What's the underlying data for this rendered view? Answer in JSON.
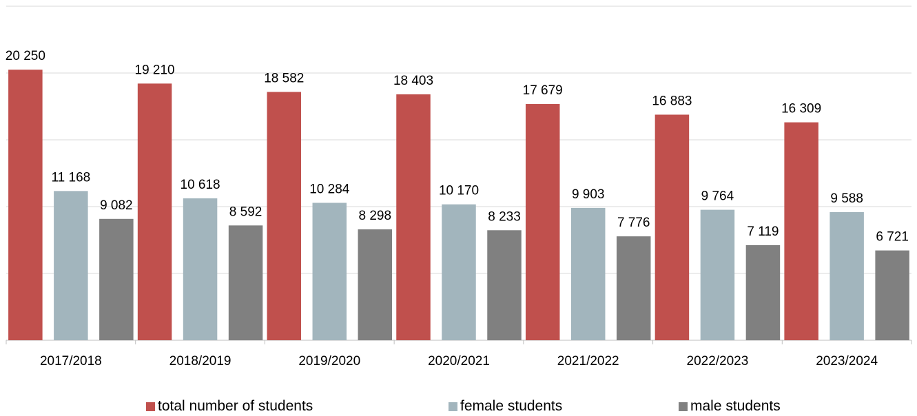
{
  "chart_data": {
    "type": "bar",
    "categories": [
      "2017/2018",
      "2018/2019",
      "2019/2020",
      "2020/2021",
      "2021/2022",
      "2022/2023",
      "2023/2024"
    ],
    "series": [
      {
        "name": "total number of students",
        "color": "#c0504d",
        "values": [
          20250,
          19210,
          18582,
          18403,
          17679,
          16883,
          16309
        ],
        "labels": [
          "20 250",
          "19 210",
          "18 582",
          "18 403",
          "17 679",
          "16 883",
          "16 309"
        ]
      },
      {
        "name": "female students",
        "color": "#a2b5bd",
        "values": [
          11168,
          10618,
          10284,
          10170,
          9903,
          9764,
          9588
        ],
        "labels": [
          "11 168",
          "10 618",
          "10 284",
          "10 170",
          "9 903",
          "9 764",
          "9 588"
        ]
      },
      {
        "name": "male students",
        "color": "#808080",
        "values": [
          9082,
          8592,
          8298,
          8233,
          7776,
          7119,
          6721
        ],
        "labels": [
          "9 082",
          "8 592",
          "8 298",
          "8 233",
          "7 776",
          "7 119",
          "6 721"
        ]
      }
    ],
    "ylim": [
      0,
      25000
    ],
    "grid": true,
    "legend": "bottom"
  }
}
